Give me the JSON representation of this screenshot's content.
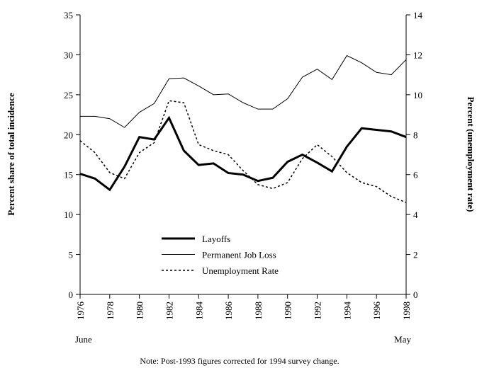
{
  "chart_data": {
    "type": "line",
    "x": [
      1976,
      1977,
      1978,
      1979,
      1980,
      1981,
      1982,
      1983,
      1984,
      1985,
      1986,
      1987,
      1988,
      1989,
      1990,
      1991,
      1992,
      1993,
      1994,
      1995,
      1996,
      1997,
      1998
    ],
    "xlim": [
      1976,
      1998
    ],
    "xticks": [
      1976,
      1978,
      1980,
      1982,
      1984,
      1986,
      1988,
      1990,
      1992,
      1994,
      1996,
      1998
    ],
    "ylim": [
      0,
      35
    ],
    "yticks": [
      0,
      5,
      10,
      15,
      20,
      25,
      30,
      35
    ],
    "y2lim": [
      0,
      14
    ],
    "y2ticks": [
      0,
      2,
      4,
      6,
      8,
      10,
      12,
      14
    ],
    "ylabel": "Percent share of total incidence",
    "y2label": "Percent (unemployment rate)",
    "annotations": [
      "June",
      "May"
    ],
    "note": "Note: Post-1993 figures corrected for 1994 survey change.",
    "series": [
      {
        "name": "Layoffs",
        "color": "#000000",
        "width": 3,
        "style": "solid",
        "values": [
          15.1,
          14.5,
          13.1,
          16.0,
          19.7,
          19.4,
          22.1,
          18.0,
          16.2,
          16.4,
          15.2,
          15.0,
          14.2,
          14.6,
          16.6,
          17.5,
          16.5,
          15.4,
          18.5,
          20.8,
          20.6,
          20.4,
          19.7
        ]
      },
      {
        "name": "Permanent Job Loss",
        "color": "#000000",
        "width": 1,
        "style": "solid",
        "values": [
          22.3,
          22.3,
          22.0,
          20.9,
          22.8,
          23.9,
          27.0,
          27.1,
          26.1,
          25.0,
          25.1,
          24.0,
          23.2,
          23.2,
          24.5,
          27.2,
          28.2,
          26.9,
          29.9,
          29.0,
          27.8,
          27.5,
          29.4
        ]
      },
      {
        "name": "Unemployment Rate",
        "color": "#000000",
        "width": 1.5,
        "style": "dotted",
        "axis": "y2",
        "values": [
          7.7,
          7.1,
          6.1,
          5.8,
          7.1,
          7.6,
          9.7,
          9.6,
          7.5,
          7.2,
          7.0,
          6.2,
          5.5,
          5.3,
          5.6,
          6.8,
          7.5,
          6.9,
          6.1,
          5.6,
          5.4,
          4.9,
          4.6
        ]
      }
    ]
  }
}
